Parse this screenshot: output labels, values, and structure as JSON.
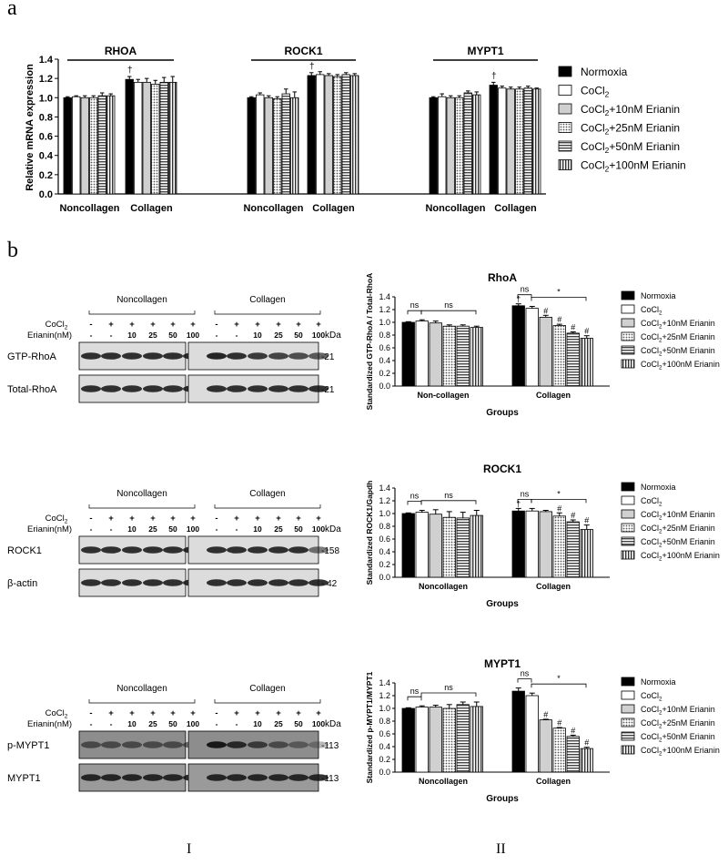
{
  "panel_a": "a",
  "panel_b": "b",
  "roman_1": "I",
  "roman_2": "II",
  "colors": {
    "black": "#000000",
    "white": "#ffffff",
    "light": "#d0d0d0",
    "dot": "#a8a8a8",
    "hstripe": "#8a8a8a",
    "vstripe": "#6a6a6a"
  },
  "legend": [
    {
      "text": "Normoxia",
      "sub": "",
      "rest": "",
      "fill": "solid"
    },
    {
      "text": "CoCl",
      "sub": "2",
      "rest": "",
      "fill": "white"
    },
    {
      "text": "CoCl",
      "sub": "2",
      "rest": "+10nM Erianin",
      "fill": "light"
    },
    {
      "text": "CoCl",
      "sub": "2",
      "rest": "+25nM Erianin",
      "fill": "dots"
    },
    {
      "text": "CoCl",
      "sub": "2",
      "rest": "+50nM Erianin",
      "fill": "hstripe"
    },
    {
      "text": "CoCl",
      "sub": "2",
      "rest": "+100nM Erianin",
      "fill": "vstripe"
    }
  ],
  "chart_data": [
    {
      "type": "bar",
      "id": "a",
      "title": "",
      "ylabel": "Relative mRNA expression",
      "ylim": [
        0,
        1.4
      ],
      "yticks": [
        "0.0",
        "0.2",
        "0.4",
        "0.6",
        "0.8",
        "1.0",
        "1.2",
        "1.4"
      ],
      "groups": [
        {
          "gene": "RHOA",
          "categories": [
            "Noncollagen",
            "Collagen"
          ],
          "values": [
            [
              1.0,
              1.01,
              1.0,
              1.0,
              1.02,
              1.02
            ],
            [
              1.19,
              1.16,
              1.16,
              1.14,
              1.16,
              1.16
            ]
          ],
          "errors": [
            [
              0.01,
              0.01,
              0.02,
              0.02,
              0.03,
              0.02
            ],
            [
              0.03,
              0.03,
              0.04,
              0.04,
              0.05,
              0.06
            ]
          ],
          "marks": [
            [
              "",
              "",
              "",
              "",
              "",
              ""
            ],
            [
              "†",
              "",
              "",
              "",
              "",
              ""
            ]
          ]
        },
        {
          "gene": "ROCK1",
          "categories": [
            "Noncollagen",
            "Collagen"
          ],
          "values": [
            [
              1.0,
              1.03,
              1.0,
              0.99,
              1.04,
              1.0
            ],
            [
              1.23,
              1.24,
              1.23,
              1.22,
              1.24,
              1.23
            ]
          ],
          "errors": [
            [
              0.01,
              0.02,
              0.02,
              0.02,
              0.05,
              0.06
            ],
            [
              0.03,
              0.03,
              0.02,
              0.02,
              0.02,
              0.02
            ]
          ],
          "marks": [
            [
              "",
              "",
              "",
              "",
              "",
              ""
            ],
            [
              "†",
              "",
              "",
              "",
              "",
              ""
            ]
          ]
        },
        {
          "gene": "MYPT1",
          "categories": [
            "Noncollagen",
            "Collagen"
          ],
          "values": [
            [
              1.0,
              1.01,
              1.0,
              1.0,
              1.05,
              1.03
            ],
            [
              1.13,
              1.1,
              1.09,
              1.09,
              1.1,
              1.09
            ]
          ],
          "errors": [
            [
              0.01,
              0.03,
              0.02,
              0.02,
              0.02,
              0.03
            ],
            [
              0.03,
              0.02,
              0.02,
              0.02,
              0.02,
              0.01
            ]
          ],
          "marks": [
            [
              "",
              "",
              "",
              "",
              "",
              ""
            ],
            [
              "†",
              "",
              "",
              "",
              "",
              ""
            ]
          ]
        }
      ]
    },
    {
      "type": "bar",
      "id": "rhoa",
      "title": "RhoA",
      "xlabel": "Groups",
      "ylabel": "Standardized GTP-RhoA / Total-RhoA",
      "ylim": [
        0,
        1.4
      ],
      "yticks": [
        "0.0",
        "0.2",
        "0.4",
        "0.6",
        "0.8",
        "1.0",
        "1.2",
        "1.4"
      ],
      "categories": [
        "Non-collagen",
        "Collagen"
      ],
      "values": [
        [
          1.0,
          1.02,
          0.99,
          0.94,
          0.94,
          0.92
        ],
        [
          1.26,
          1.22,
          1.08,
          0.95,
          0.83,
          0.75
        ]
      ],
      "errors": [
        [
          0.01,
          0.02,
          0.03,
          0.02,
          0.02,
          0.02
        ],
        [
          0.03,
          0.03,
          0.03,
          0.02,
          0.02,
          0.04
        ]
      ],
      "marks": [
        [
          "",
          "",
          "",
          "",
          "",
          ""
        ],
        [
          "†",
          "",
          "#",
          "#",
          "#",
          "#"
        ]
      ],
      "annotations": [
        {
          "text": "ns",
          "group": 0,
          "from": 0,
          "to": 1
        },
        {
          "text": "ns",
          "group": 0,
          "from": 1,
          "to": 5
        },
        {
          "text": "ns",
          "group": 1,
          "from": 0,
          "to": 1
        },
        {
          "text": "*",
          "group": 1,
          "from": 1,
          "to": 5
        }
      ]
    },
    {
      "type": "bar",
      "id": "rock1",
      "title": "ROCK1",
      "xlabel": "Groups",
      "ylabel": "Standardized ROCK1/Gapdh",
      "ylim": [
        0,
        1.4
      ],
      "yticks": [
        "0.0",
        "0.2",
        "0.4",
        "0.6",
        "0.8",
        "1.0",
        "1.2",
        "1.4"
      ],
      "categories": [
        "Noncollagen",
        "Collagen"
      ],
      "values": [
        [
          1.0,
          1.02,
          0.99,
          0.94,
          0.93,
          0.97
        ],
        [
          1.04,
          1.04,
          1.03,
          0.96,
          0.87,
          0.75
        ]
      ],
      "errors": [
        [
          0.01,
          0.03,
          0.07,
          0.09,
          0.09,
          0.08
        ],
        [
          0.04,
          0.04,
          0.02,
          0.05,
          0.03,
          0.07
        ]
      ],
      "marks": [
        [
          "",
          "",
          "",
          "",
          "",
          ""
        ],
        [
          "†",
          "",
          "",
          "#",
          "#",
          "#"
        ]
      ],
      "annotations": [
        {
          "text": "ns",
          "group": 0,
          "from": 0,
          "to": 1
        },
        {
          "text": "ns",
          "group": 0,
          "from": 1,
          "to": 5
        },
        {
          "text": "ns",
          "group": 1,
          "from": 0,
          "to": 1
        },
        {
          "text": "*",
          "group": 1,
          "from": 1,
          "to": 5
        }
      ]
    },
    {
      "type": "bar",
      "id": "mypt1",
      "title": "MYPT1",
      "xlabel": "Groups",
      "ylabel": "Standardized p-MYPT1/MYPT1",
      "ylim": [
        0,
        1.4
      ],
      "yticks": [
        "0.0",
        "0.2",
        "0.4",
        "0.6",
        "0.8",
        "1.0",
        "1.2",
        "1.4"
      ],
      "categories": [
        "Noncollagen",
        "Collagen"
      ],
      "values": [
        [
          1.0,
          1.02,
          1.02,
          1.0,
          1.06,
          1.03
        ],
        [
          1.27,
          1.2,
          0.82,
          0.69,
          0.56,
          0.37
        ]
      ],
      "errors": [
        [
          0.01,
          0.02,
          0.03,
          0.06,
          0.04,
          0.07
        ],
        [
          0.05,
          0.04,
          0.01,
          0.01,
          0.02,
          0.02
        ]
      ],
      "marks": [
        [
          "",
          "",
          "",
          "",
          "",
          ""
        ],
        [
          "",
          "",
          "#",
          "#",
          "#",
          "#"
        ]
      ],
      "annotations": [
        {
          "text": "ns",
          "group": 0,
          "from": 0,
          "to": 1
        },
        {
          "text": "ns",
          "group": 0,
          "from": 1,
          "to": 5
        },
        {
          "text": "ns",
          "group": 1,
          "from": 0,
          "to": 1
        },
        {
          "text": "*",
          "group": 1,
          "from": 1,
          "to": 5
        }
      ]
    }
  ],
  "blots": [
    {
      "id": "rhoa",
      "group_labels": [
        "Noncollagen",
        "Collagen"
      ],
      "cocl2_label": "CoCl",
      "cocl2_sub": "2",
      "erianin_label": "Erianin(nM)",
      "cocl2": [
        "-",
        "+",
        "+",
        "+",
        "+",
        "+"
      ],
      "erianin": [
        "-",
        "-",
        "10",
        "25",
        "50",
        "100"
      ],
      "kda_label": "kDa",
      "bands": [
        {
          "label": "GTP-RhoA",
          "kda": "-21"
        },
        {
          "label": "Total-RhoA",
          "kda": "-21"
        }
      ]
    },
    {
      "id": "rock1",
      "group_labels": [
        "Noncollagen",
        "Collagen"
      ],
      "cocl2_label": "CoCl",
      "cocl2_sub": "2",
      "erianin_label": "Erianin(nM)",
      "cocl2": [
        "-",
        "+",
        "+",
        "+",
        "+",
        "+"
      ],
      "erianin": [
        "-",
        "-",
        "10",
        "25",
        "50",
        "100"
      ],
      "kda_label": "kDa",
      "bands": [
        {
          "label": "ROCK1",
          "kda": "-158"
        },
        {
          "label": "β-actin",
          "kda": "- 42"
        }
      ]
    },
    {
      "id": "mypt1",
      "group_labels": [
        "Noncollagen",
        "Collagen"
      ],
      "cocl2_label": "CoCl",
      "cocl2_sub": "2",
      "erianin_label": "Erianin(nM)",
      "cocl2": [
        "-",
        "+",
        "+",
        "+",
        "+",
        "+"
      ],
      "erianin": [
        "-",
        "-",
        "10",
        "25",
        "50",
        "100"
      ],
      "kda_label": "kDa",
      "bands": [
        {
          "label": "p-MYPT1",
          "kda": "-113"
        },
        {
          "label": "MYPT1",
          "kda": "-113"
        }
      ]
    }
  ]
}
